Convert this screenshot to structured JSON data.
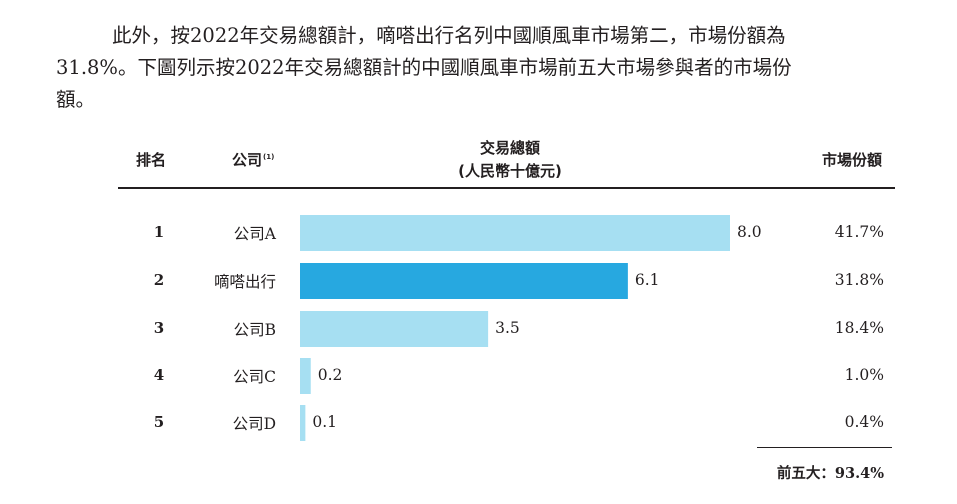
{
  "paragraph": {
    "line1": "此外，按2022年交易總額計，嘀嗒出行名列中國順風車市場第二，市場份額為",
    "line2": "31.8%。下圖列示按2022年交易總額計的中國順風車市場前五大市場參與者的市場份",
    "line3": "額。"
  },
  "table_header": {
    "rank": "排名",
    "company": "公司",
    "company_note": "(1)",
    "gtv_line1": "交易總額",
    "gtv_line2": "(人民幣十億元)",
    "share": "市場份額"
  },
  "chart_data": {
    "type": "bar",
    "orientation": "horizontal",
    "categories": [
      "公司A",
      "嘀嗒出行",
      "公司B",
      "公司C",
      "公司D"
    ],
    "ranks": [
      "1",
      "2",
      "3",
      "4",
      "5"
    ],
    "values": [
      8.0,
      6.1,
      3.5,
      0.2,
      0.1
    ],
    "value_labels": [
      "8.0",
      "6.1",
      "3.5",
      "0.2",
      "0.1"
    ],
    "market_share": [
      "41.7%",
      "31.8%",
      "18.4%",
      "1.0%",
      "0.4%"
    ],
    "highlight_index": 1,
    "xlim": [
      0,
      8.0
    ],
    "colors": {
      "bar": "#a6dff2",
      "highlight": "#27a8e0"
    },
    "grid": false,
    "legend": "none"
  },
  "total": {
    "label": "前五大：",
    "value": "93.4%"
  }
}
